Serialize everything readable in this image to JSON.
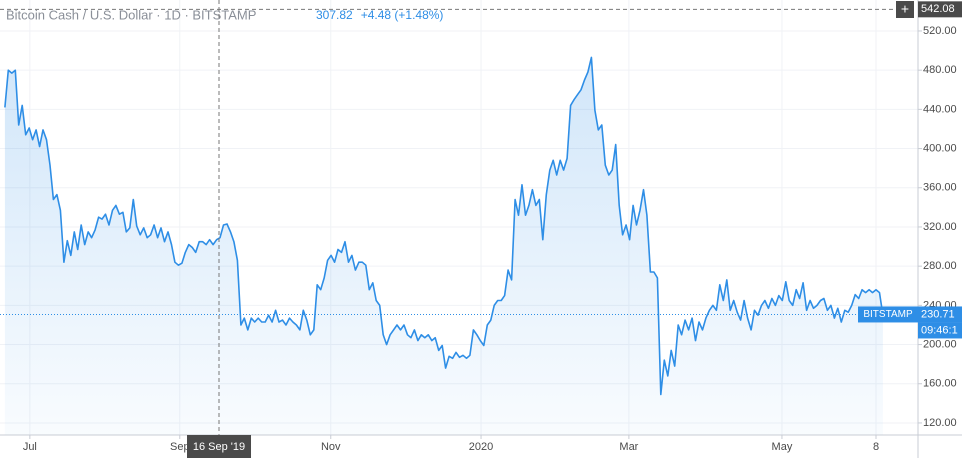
{
  "chart_data": {
    "type": "area",
    "title": "Bitcoin Cash / U.S. Dollar · 1D · BITSTAMP",
    "legend_price": "307.82",
    "legend_change": "+4.48 (+1.48%)",
    "color": "#2e8ee6",
    "grid": true,
    "values": [
      442,
      480,
      477,
      480,
      424,
      444,
      414,
      421,
      409,
      419,
      402,
      419,
      409,
      383,
      348,
      353,
      337,
      284,
      306,
      291,
      315,
      297,
      322,
      302,
      315,
      309,
      317,
      330,
      328,
      333,
      322,
      337,
      342,
      333,
      335,
      315,
      319,
      348,
      321,
      312,
      319,
      309,
      312,
      322,
      309,
      319,
      305,
      315,
      302,
      284,
      281,
      283,
      294,
      302,
      299,
      294,
      305,
      305,
      302,
      307,
      302,
      307,
      309,
      322,
      323,
      315,
      305,
      286,
      220,
      227,
      215,
      227,
      223,
      227,
      223,
      223,
      230,
      223,
      235,
      223,
      225,
      220,
      227,
      223,
      220,
      215,
      235,
      225,
      210,
      215,
      261,
      256,
      268,
      286,
      291,
      284,
      297,
      294,
      305,
      284,
      291,
      276,
      284,
      284,
      281,
      256,
      263,
      245,
      240,
      210,
      200,
      210,
      215,
      220,
      215,
      220,
      210,
      207,
      215,
      204,
      210,
      207,
      210,
      204,
      207,
      194,
      199,
      176,
      188,
      186,
      192,
      187,
      189,
      186,
      189,
      215,
      210,
      204,
      199,
      220,
      225,
      240,
      245,
      245,
      250,
      276,
      266,
      348,
      332,
      363,
      332,
      342,
      358,
      342,
      348,
      307,
      353,
      378,
      388,
      373,
      388,
      378,
      390,
      444,
      450,
      455,
      460,
      470,
      478,
      493,
      439,
      419,
      424,
      383,
      373,
      378,
      404,
      342,
      312,
      322,
      307,
      342,
      322,
      337,
      358,
      332,
      274,
      274,
      268,
      149,
      184,
      168,
      194,
      178,
      220,
      210,
      225,
      215,
      227,
      204,
      223,
      215,
      227,
      235,
      240,
      235,
      261,
      245,
      266,
      235,
      245,
      233,
      225,
      245,
      227,
      215,
      235,
      230,
      240,
      245,
      237,
      247,
      240,
      250,
      245,
      264,
      245,
      240,
      256,
      247,
      263,
      235,
      245,
      237,
      240,
      245,
      247,
      235,
      240,
      227,
      237,
      223,
      235,
      233,
      240,
      251,
      247,
      256,
      253,
      256,
      253,
      256,
      253,
      230
    ],
    "xlim": [
      -1.4,
      263.1
    ],
    "xticks": [
      {
        "value": 7.2,
        "label": "Jul"
      },
      {
        "value": 50.4,
        "label": "Sep"
      },
      {
        "value": 93.9,
        "label": "Nov"
      },
      {
        "value": 137.2,
        "label": "2020"
      },
      {
        "value": 179.8,
        "label": "Mar"
      },
      {
        "value": 223.9,
        "label": "May"
      },
      {
        "value": 251,
        "label": "8"
      }
    ],
    "ylim": [
      107.7,
      551.6
    ],
    "yticks": [
      {
        "value": 120,
        "label": "120.00"
      },
      {
        "value": 160,
        "label": "160.00"
      },
      {
        "value": 200,
        "label": "200.00"
      },
      {
        "value": 240,
        "label": "240.00"
      },
      {
        "value": 280,
        "label": "280.00"
      },
      {
        "value": 320,
        "label": "320.00"
      },
      {
        "value": 360,
        "label": "360.00"
      },
      {
        "value": 400,
        "label": "400.00"
      },
      {
        "value": 440,
        "label": "440.00"
      },
      {
        "value": 480,
        "label": "480.00"
      },
      {
        "value": 520,
        "label": "520.00"
      }
    ],
    "last_price": 230.71,
    "exchange_label": "BITSTAMP",
    "countdown": "09:46:1",
    "crosshair": {
      "x": 61.7,
      "y": 542.08,
      "date_label": "16 Sep '19"
    }
  }
}
